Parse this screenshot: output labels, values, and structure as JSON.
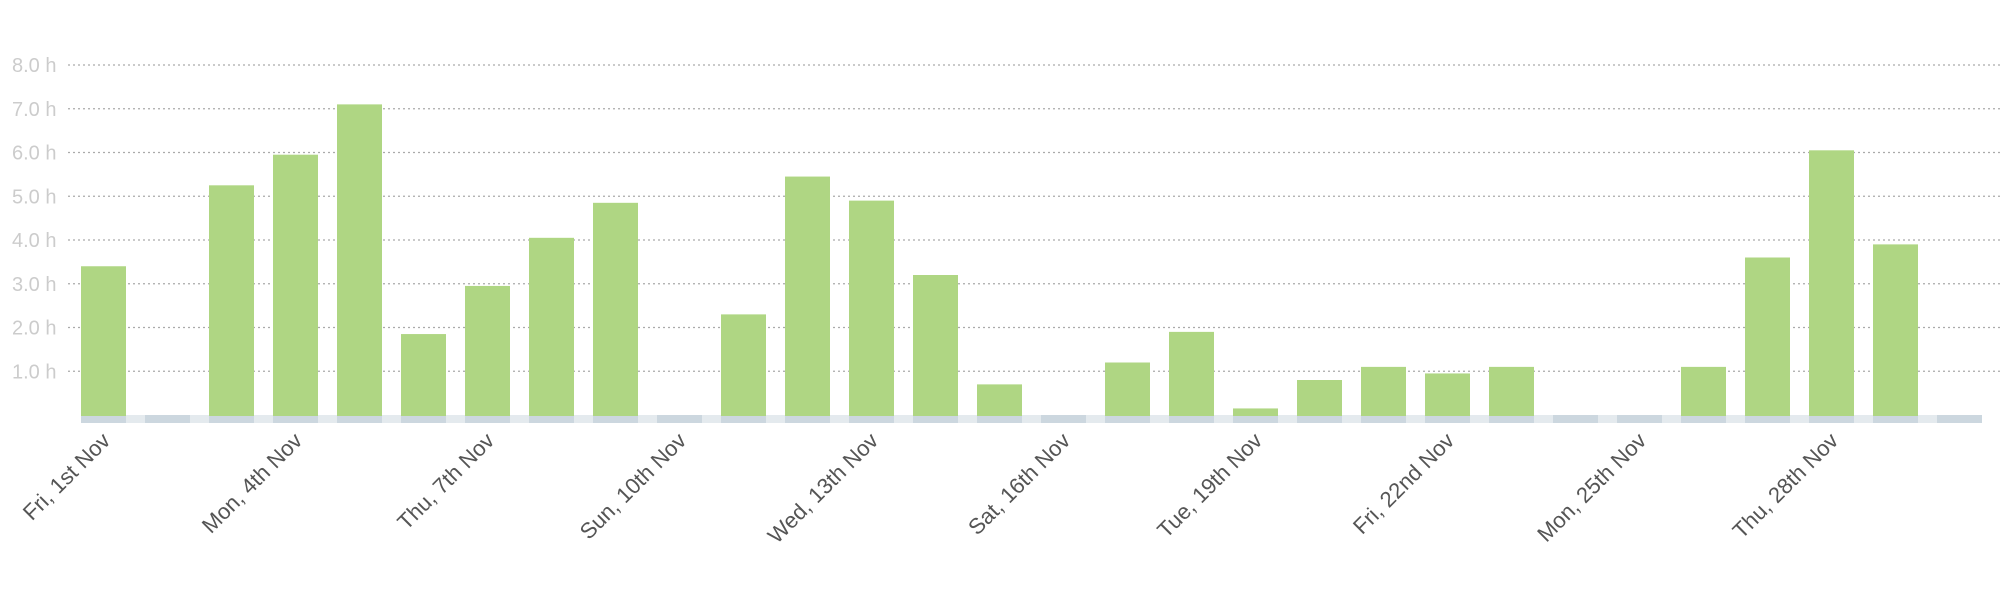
{
  "chart_data": {
    "type": "bar",
    "title": "",
    "xlabel": "",
    "ylabel": "",
    "ylim": [
      0,
      8
    ],
    "grid": true,
    "y_ticks": [
      {
        "value": 1,
        "label": "1.0 h"
      },
      {
        "value": 2,
        "label": "2.0 h"
      },
      {
        "value": 3,
        "label": "3.0 h"
      },
      {
        "value": 4,
        "label": "4.0 h"
      },
      {
        "value": 5,
        "label": "5.0 h"
      },
      {
        "value": 6,
        "label": "6.0 h"
      },
      {
        "value": 7,
        "label": "7.0 h"
      },
      {
        "value": 8,
        "label": "8.0 h"
      }
    ],
    "x_tick_labels": [
      "Fri, 1st Nov",
      "Mon, 4th Nov",
      "Thu, 7th Nov",
      "Sun, 10th Nov",
      "Wed, 13th Nov",
      "Sat, 16th Nov",
      "Tue, 19th Nov",
      "Fri, 22nd Nov",
      "Mon, 25th Nov",
      "Thu, 28th Nov"
    ],
    "label_every": 3,
    "categories": [
      "1",
      "2",
      "3",
      "4",
      "5",
      "6",
      "7",
      "8",
      "9",
      "10",
      "11",
      "12",
      "13",
      "14",
      "15",
      "16",
      "17",
      "18",
      "19",
      "20",
      "21",
      "22",
      "23",
      "24",
      "25",
      "26",
      "27",
      "28",
      "29",
      "30"
    ],
    "values": [
      3.4,
      0,
      5.25,
      5.95,
      7.1,
      1.85,
      2.95,
      4.05,
      4.85,
      0,
      2.3,
      5.45,
      4.9,
      3.2,
      0.7,
      0,
      1.2,
      1.9,
      0.15,
      0.8,
      1.1,
      0.95,
      1.1,
      0,
      0,
      1.1,
      3.6,
      6.05,
      3.9,
      0
    ],
    "colors": {
      "bar": "#afd683",
      "baseline_track": "#ccd7df",
      "grid": "#aaaaaa",
      "y_tick_text": "#cccccc",
      "x_tick_text": "#555555"
    }
  }
}
